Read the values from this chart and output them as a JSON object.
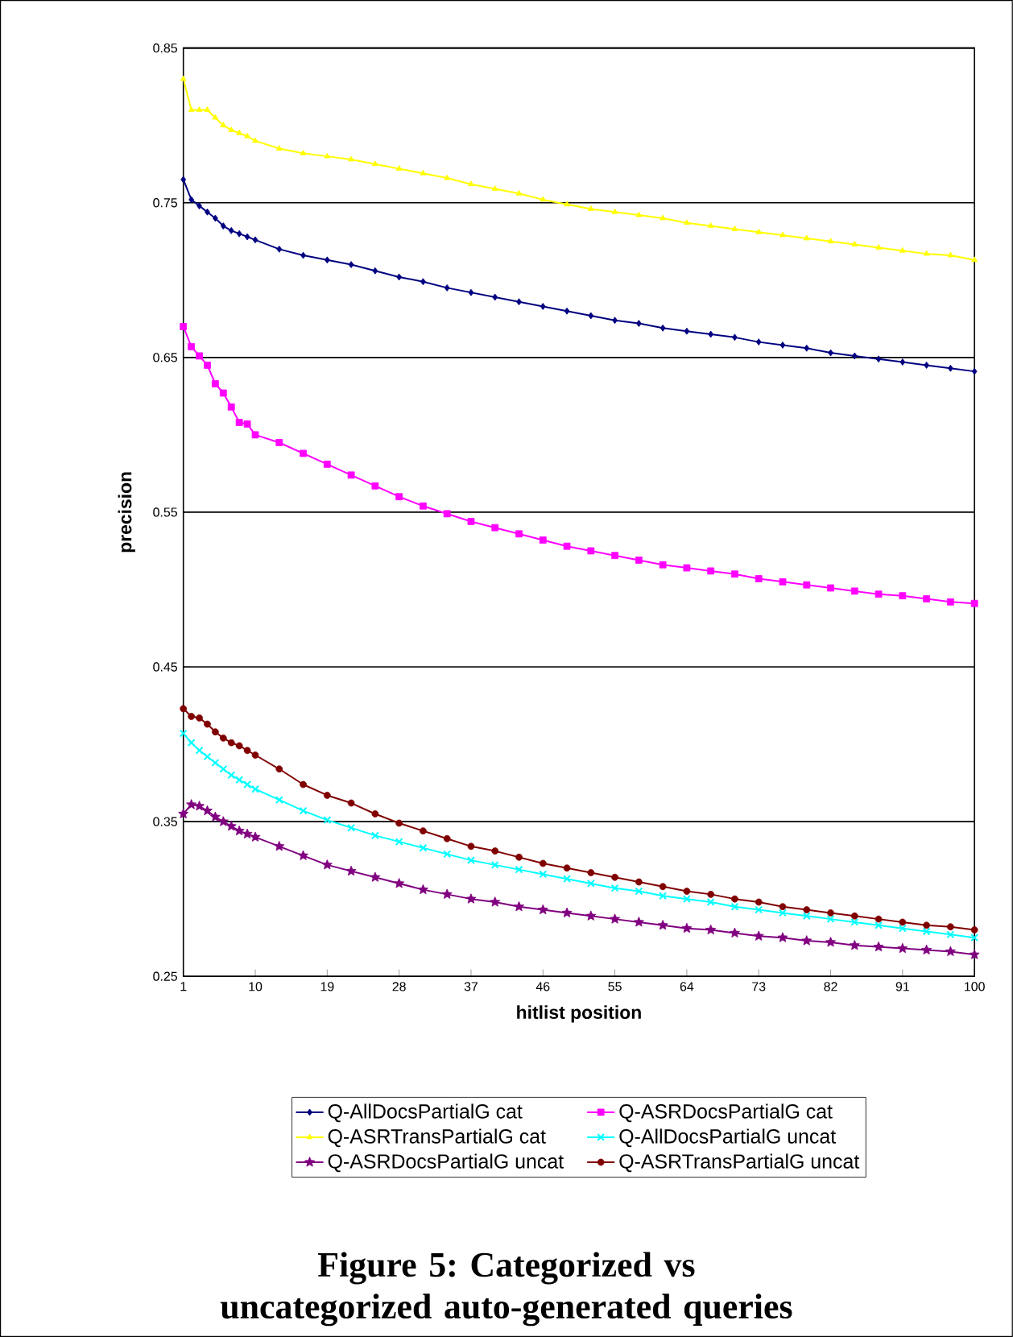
{
  "chart_data": {
    "type": "line",
    "title": "Figure 5: Categorized vs uncategorized auto-generated queries",
    "xlabel": "hitlist position",
    "ylabel": "precision",
    "x": [
      1,
      2,
      3,
      4,
      5,
      6,
      7,
      8,
      9,
      10,
      13,
      16,
      19,
      22,
      25,
      28,
      31,
      34,
      37,
      40,
      43,
      46,
      49,
      52,
      55,
      58,
      61,
      64,
      67,
      70,
      73,
      76,
      79,
      82,
      85,
      88,
      91,
      94,
      97,
      100
    ],
    "xlim": [
      1,
      100
    ],
    "xticks": [
      1,
      10,
      19,
      28,
      37,
      46,
      55,
      64,
      73,
      82,
      91,
      100
    ],
    "ylim": [
      0.25,
      0.85
    ],
    "yticks": [
      0.25,
      0.35,
      0.45,
      0.55,
      0.65,
      0.75,
      0.85
    ],
    "grid": "y",
    "legend": "bottom",
    "series": [
      {
        "name": "Q-AllDocsPartialG cat",
        "color": "#000080",
        "marker": "diamond",
        "values": [
          0.765,
          0.752,
          0.748,
          0.744,
          0.74,
          0.735,
          0.732,
          0.73,
          0.728,
          0.726,
          0.72,
          0.716,
          0.713,
          0.71,
          0.706,
          0.702,
          0.699,
          0.695,
          0.692,
          0.689,
          0.686,
          0.683,
          0.68,
          0.677,
          0.674,
          0.672,
          0.669,
          0.667,
          0.665,
          0.663,
          0.66,
          0.658,
          0.656,
          0.653,
          0.651,
          0.649,
          0.647,
          0.645,
          0.643,
          0.641
        ]
      },
      {
        "name": "Q-ASRDocsPartialG cat",
        "color": "#ff00ff",
        "marker": "square",
        "values": [
          0.67,
          0.657,
          0.651,
          0.645,
          0.633,
          0.627,
          0.618,
          0.608,
          0.607,
          0.6,
          0.595,
          0.588,
          0.581,
          0.574,
          0.567,
          0.56,
          0.554,
          0.549,
          0.544,
          0.54,
          0.536,
          0.532,
          0.528,
          0.525,
          0.522,
          0.519,
          0.516,
          0.514,
          0.512,
          0.51,
          0.507,
          0.505,
          0.503,
          0.501,
          0.499,
          0.497,
          0.496,
          0.494,
          0.492,
          0.491
        ]
      },
      {
        "name": "Q-ASRTransPartialG cat",
        "color": "#ffff00",
        "marker": "triangle",
        "values": [
          0.83,
          0.81,
          0.81,
          0.81,
          0.805,
          0.8,
          0.797,
          0.795,
          0.793,
          0.79,
          0.785,
          0.782,
          0.78,
          0.778,
          0.775,
          0.772,
          0.769,
          0.766,
          0.762,
          0.759,
          0.756,
          0.752,
          0.749,
          0.746,
          0.744,
          0.742,
          0.74,
          0.737,
          0.735,
          0.733,
          0.731,
          0.729,
          0.727,
          0.725,
          0.723,
          0.721,
          0.719,
          0.717,
          0.716,
          0.713
        ]
      },
      {
        "name": "Q-AllDocsPartialG uncat",
        "color": "#00ffff",
        "marker": "cross",
        "values": [
          0.407,
          0.401,
          0.396,
          0.392,
          0.388,
          0.384,
          0.38,
          0.377,
          0.374,
          0.371,
          0.364,
          0.357,
          0.351,
          0.346,
          0.341,
          0.337,
          0.333,
          0.329,
          0.325,
          0.322,
          0.319,
          0.316,
          0.313,
          0.31,
          0.307,
          0.305,
          0.302,
          0.3,
          0.298,
          0.295,
          0.293,
          0.291,
          0.289,
          0.287,
          0.285,
          0.283,
          0.281,
          0.279,
          0.277,
          0.275
        ]
      },
      {
        "name": "Q-ASRDocsPartialG uncat",
        "color": "#800080",
        "marker": "star",
        "values": [
          0.355,
          0.361,
          0.36,
          0.357,
          0.353,
          0.35,
          0.347,
          0.344,
          0.342,
          0.34,
          0.334,
          0.328,
          0.322,
          0.318,
          0.314,
          0.31,
          0.306,
          0.303,
          0.3,
          0.298,
          0.295,
          0.293,
          0.291,
          0.289,
          0.287,
          0.285,
          0.283,
          0.281,
          0.28,
          0.278,
          0.276,
          0.275,
          0.273,
          0.272,
          0.27,
          0.269,
          0.268,
          0.267,
          0.266,
          0.264
        ]
      },
      {
        "name": "Q-ASRTransPartialG uncat",
        "color": "#800000",
        "marker": "circle",
        "values": [
          0.423,
          0.418,
          0.417,
          0.413,
          0.408,
          0.404,
          0.401,
          0.399,
          0.396,
          0.393,
          0.384,
          0.374,
          0.367,
          0.362,
          0.355,
          0.349,
          0.344,
          0.339,
          0.334,
          0.331,
          0.327,
          0.323,
          0.32,
          0.317,
          0.314,
          0.311,
          0.308,
          0.305,
          0.303,
          0.3,
          0.298,
          0.295,
          0.293,
          0.291,
          0.289,
          0.287,
          0.285,
          0.283,
          0.282,
          0.28
        ]
      }
    ]
  }
}
